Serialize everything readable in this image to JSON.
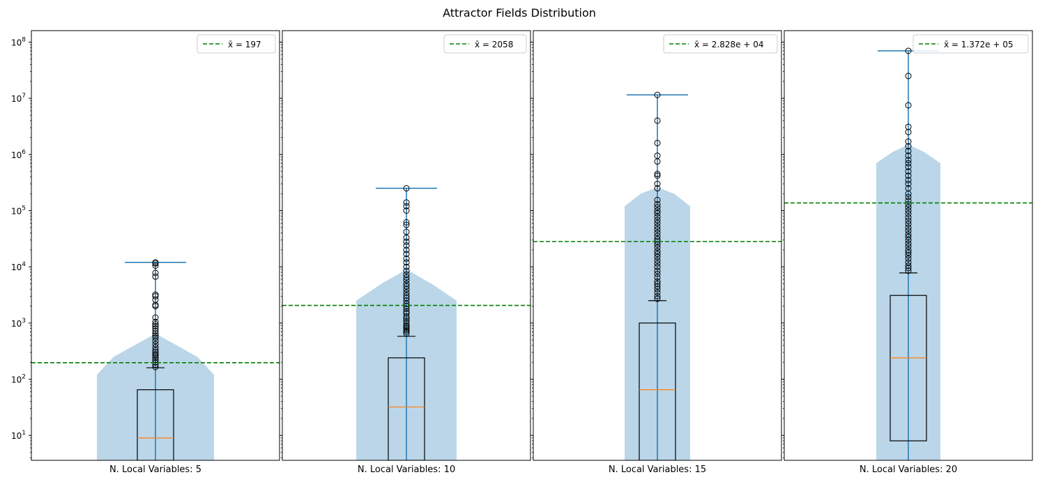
{
  "chart_data": {
    "type": "box",
    "title": "Attractor Fields Distribution",
    "yscale": "log",
    "ylim": [
      3.6,
      160000000
    ],
    "ytick_labels": [
      "10^1",
      "10^2",
      "10^3",
      "10^4",
      "10^5",
      "10^6",
      "10^7",
      "10^8"
    ],
    "ytick_values": [
      10,
      100,
      1000,
      10000,
      100000,
      1000000,
      10000000,
      100000000
    ],
    "sharey": true,
    "grid": false,
    "legend_placement": "top-right",
    "colors": {
      "mean_line": "#008000",
      "whisker": "#1f77b4",
      "median": "#ff7f0e",
      "violin_fill": "#1f77b4",
      "box": "#000000"
    },
    "panels": [
      {
        "xlabel": "N. Local Variables: 5",
        "mean": 197,
        "legend_label": "x̄ = 197",
        "box": {
          "q1": 1,
          "median": 9,
          "q3": 65,
          "whisker_low": 1,
          "whisker_high": 160
        },
        "range_max": 12000,
        "violin_profile": [
          [
            0.012,
            120
          ],
          [
            0.006,
            250
          ],
          [
            0.004,
            650
          ],
          [
            0.006,
            250
          ],
          [
            0.012,
            120
          ]
        ],
        "fliers": [
          165,
          180,
          200,
          220,
          240,
          260,
          280,
          300,
          330,
          370,
          420,
          480,
          550,
          600,
          650,
          720,
          800,
          880,
          950,
          1050,
          1250,
          2000,
          2100,
          2600,
          3000,
          3200,
          6700,
          7800,
          10500,
          11500,
          12000
        ]
      },
      {
        "xlabel": "N. Local Variables: 10",
        "mean": 2058,
        "legend_label": "x̄ = 2058",
        "box": {
          "q1": 1,
          "median": 32,
          "q3": 240,
          "whisker_low": 1,
          "whisker_high": 580
        },
        "range_max": 250000,
        "violin_profile": [
          [
            0.012,
            2500
          ],
          [
            0.006,
            5000
          ],
          [
            0.004,
            9000
          ],
          [
            0.006,
            5000
          ],
          [
            0.012,
            2500
          ]
        ],
        "fliers": [
          650,
          700,
          750,
          800,
          850,
          900,
          1000,
          1100,
          1200,
          1300,
          1500,
          1600,
          1800,
          2000,
          2200,
          2500,
          2800,
          3100,
          3500,
          4000,
          4500,
          5000,
          5800,
          6500,
          7300,
          8500,
          10000,
          12000,
          14000,
          17000,
          20000,
          24000,
          28000,
          33000,
          42000,
          56000,
          62000,
          100000,
          120000,
          140000,
          250000
        ]
      },
      {
        "xlabel": "N. Local Variables: 15",
        "mean": 28280,
        "legend_label": "x̄ = 2.828e + 04",
        "box": {
          "q1": 1,
          "median": 65,
          "q3": 1000,
          "whisker_low": 1,
          "whisker_high": 2500
        },
        "range_max": 11500000,
        "violin_profile": [
          [
            0.012,
            120000
          ],
          [
            0.006,
            200000
          ],
          [
            0.004,
            260000
          ],
          [
            0.006,
            200000
          ],
          [
            0.012,
            120000
          ]
        ],
        "fliers": [
          2700,
          3000,
          3500,
          4000,
          4500,
          5000,
          5500,
          6500,
          7500,
          8500,
          10000,
          11500,
          13000,
          15000,
          17000,
          19000,
          22000,
          25000,
          28000,
          31000,
          35000,
          40000,
          46000,
          52000,
          60000,
          68000,
          78000,
          90000,
          100000,
          115000,
          130000,
          155000,
          250000,
          300000,
          420000,
          450000,
          750000,
          950000,
          1600000,
          4000000,
          11500000
        ]
      },
      {
        "xlabel": "N. Local Variables: 20",
        "mean": 137200,
        "legend_label": "x̄ = 1.372e + 05",
        "box": {
          "q1": 8,
          "median": 240,
          "q3": 3100,
          "whisker_low": 1,
          "whisker_high": 7800
        },
        "range_max": 70000000,
        "violin_profile": [
          [
            0.012,
            700000
          ],
          [
            0.006,
            1100000
          ],
          [
            0.004,
            1500000
          ],
          [
            0.006,
            1100000
          ],
          [
            0.012,
            700000
          ]
        ],
        "fliers": [
          8500,
          9500,
          10500,
          12000,
          14000,
          16000,
          18000,
          20000,
          23000,
          26000,
          30000,
          34000,
          38000,
          44000,
          50000,
          58000,
          66000,
          76000,
          88000,
          100000,
          115000,
          130000,
          150000,
          175000,
          200000,
          250000,
          300000,
          350000,
          420000,
          500000,
          600000,
          700000,
          800000,
          950000,
          1150000,
          1400000,
          1700000,
          2500000,
          3100000,
          7500000,
          25000000,
          70000000
        ]
      }
    ]
  }
}
